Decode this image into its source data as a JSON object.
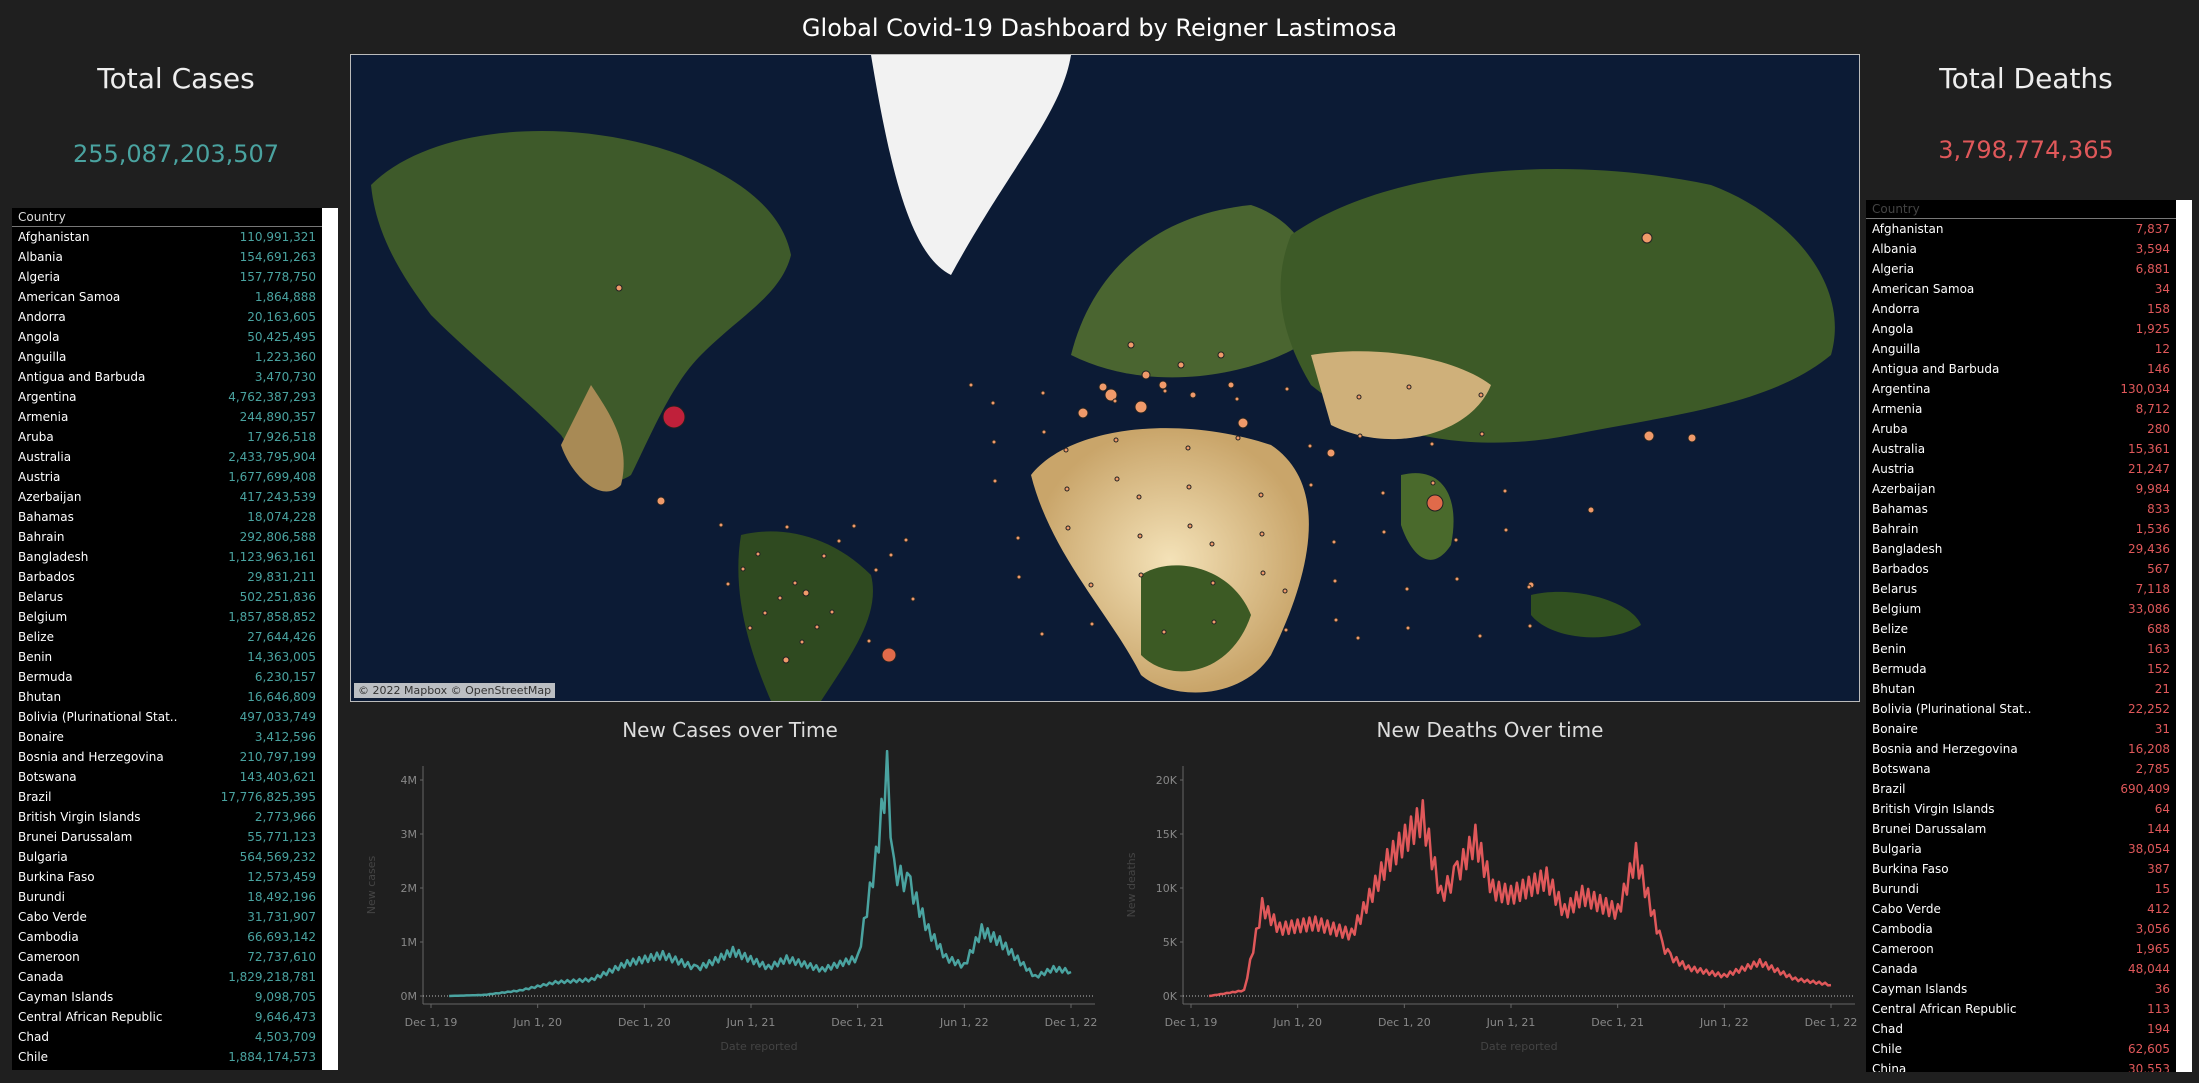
{
  "dashboard": {
    "title": "Global Covid-19 Dashboard by Reigner Lastimosa"
  },
  "cases": {
    "title": "Total Cases",
    "value": "255,087,203,507",
    "color": "#4aa3a0",
    "table_header": "Country",
    "rows": [
      [
        "Afghanistan",
        "110,991,321"
      ],
      [
        "Albania",
        "154,691,263"
      ],
      [
        "Algeria",
        "157,778,750"
      ],
      [
        "American Samoa",
        "1,864,888"
      ],
      [
        "Andorra",
        "20,163,605"
      ],
      [
        "Angola",
        "50,425,495"
      ],
      [
        "Anguilla",
        "1,223,360"
      ],
      [
        "Antigua and Barbuda",
        "3,470,730"
      ],
      [
        "Argentina",
        "4,762,387,293"
      ],
      [
        "Armenia",
        "244,890,357"
      ],
      [
        "Aruba",
        "17,926,518"
      ],
      [
        "Australia",
        "2,433,795,904"
      ],
      [
        "Austria",
        "1,677,699,408"
      ],
      [
        "Azerbaijan",
        "417,243,539"
      ],
      [
        "Bahamas",
        "18,074,228"
      ],
      [
        "Bahrain",
        "292,806,588"
      ],
      [
        "Bangladesh",
        "1,123,963,161"
      ],
      [
        "Barbados",
        "29,831,211"
      ],
      [
        "Belarus",
        "502,251,836"
      ],
      [
        "Belgium",
        "1,857,858,852"
      ],
      [
        "Belize",
        "27,644,426"
      ],
      [
        "Benin",
        "14,363,005"
      ],
      [
        "Bermuda",
        "6,230,157"
      ],
      [
        "Bhutan",
        "16,646,809"
      ],
      [
        "Bolivia (Plurinational Stat..",
        "497,033,749"
      ],
      [
        "Bonaire",
        "3,412,596"
      ],
      [
        "Bosnia and Herzegovina",
        "210,797,199"
      ],
      [
        "Botswana",
        "143,403,621"
      ],
      [
        "Brazil",
        "17,776,825,395"
      ],
      [
        "British Virgin Islands",
        "2,773,966"
      ],
      [
        "Brunei Darussalam",
        "55,771,123"
      ],
      [
        "Bulgaria",
        "564,569,232"
      ],
      [
        "Burkina Faso",
        "12,573,459"
      ],
      [
        "Burundi",
        "18,492,196"
      ],
      [
        "Cabo Verde",
        "31,731,907"
      ],
      [
        "Cambodia",
        "66,693,142"
      ],
      [
        "Cameroon",
        "72,737,610"
      ],
      [
        "Canada",
        "1,829,218,781"
      ],
      [
        "Cayman Islands",
        "9,098,705"
      ],
      [
        "Central African Republic",
        "9,646,473"
      ],
      [
        "Chad",
        "4,503,709"
      ],
      [
        "Chile",
        "1,884,174,573"
      ]
    ]
  },
  "deaths": {
    "title": "Total Deaths",
    "value": "3,798,774,365",
    "color": "#e0585a",
    "table_header": "Country",
    "rows": [
      [
        "Afghanistan",
        "7,837"
      ],
      [
        "Albania",
        "3,594"
      ],
      [
        "Algeria",
        "6,881"
      ],
      [
        "American Samoa",
        "34"
      ],
      [
        "Andorra",
        "158"
      ],
      [
        "Angola",
        "1,925"
      ],
      [
        "Anguilla",
        "12"
      ],
      [
        "Antigua and Barbuda",
        "146"
      ],
      [
        "Argentina",
        "130,034"
      ],
      [
        "Armenia",
        "8,712"
      ],
      [
        "Aruba",
        "280"
      ],
      [
        "Australia",
        "15,361"
      ],
      [
        "Austria",
        "21,247"
      ],
      [
        "Azerbaijan",
        "9,984"
      ],
      [
        "Bahamas",
        "833"
      ],
      [
        "Bahrain",
        "1,536"
      ],
      [
        "Bangladesh",
        "29,436"
      ],
      [
        "Barbados",
        "567"
      ],
      [
        "Belarus",
        "7,118"
      ],
      [
        "Belgium",
        "33,086"
      ],
      [
        "Belize",
        "688"
      ],
      [
        "Benin",
        "163"
      ],
      [
        "Bermuda",
        "152"
      ],
      [
        "Bhutan",
        "21"
      ],
      [
        "Bolivia (Plurinational Stat..",
        "22,252"
      ],
      [
        "Bonaire",
        "31"
      ],
      [
        "Bosnia and Herzegovina",
        "16,208"
      ],
      [
        "Botswana",
        "2,785"
      ],
      [
        "Brazil",
        "690,409"
      ],
      [
        "British Virgin Islands",
        "64"
      ],
      [
        "Brunei Darussalam",
        "144"
      ],
      [
        "Bulgaria",
        "38,054"
      ],
      [
        "Burkina Faso",
        "387"
      ],
      [
        "Burundi",
        "15"
      ],
      [
        "Cabo Verde",
        "412"
      ],
      [
        "Cambodia",
        "3,056"
      ],
      [
        "Cameroon",
        "1,965"
      ],
      [
        "Canada",
        "48,044"
      ],
      [
        "Cayman Islands",
        "36"
      ],
      [
        "Central African Republic",
        "113"
      ],
      [
        "Chad",
        "194"
      ],
      [
        "Chile",
        "62,605"
      ],
      [
        "China",
        "30,553"
      ]
    ]
  },
  "map": {
    "attribution": "© 2022 Mapbox © OpenStreetMap"
  },
  "chart_data": [
    {
      "type": "line",
      "title": "New Cases over Time",
      "xlabel": "Date reported",
      "ylabel": "New cases",
      "color": "#4aa3a0",
      "x_ticks": [
        "Dec 1, 19",
        "Jun 1, 20",
        "Dec 1, 20",
        "Jun 1, 21",
        "Dec 1, 21",
        "Jun 1, 22",
        "Dec 1, 22"
      ],
      "y_ticks": [
        "0M",
        "1M",
        "2M",
        "3M",
        "4M"
      ],
      "ylim": [
        0,
        4200000
      ],
      "x": [
        "2020-01",
        "2020-03",
        "2020-05",
        "2020-07",
        "2020-09",
        "2020-11",
        "2021-01",
        "2021-03",
        "2021-04",
        "2021-05",
        "2021-07",
        "2021-08",
        "2021-10",
        "2021-12",
        "2022-01",
        "2022-01-20",
        "2022-02",
        "2022-03",
        "2022-04",
        "2022-05",
        "2022-06",
        "2022-07",
        "2022-08",
        "2022-10",
        "2022-11",
        "2022-12"
      ],
      "values": [
        0,
        20000,
        100000,
        250000,
        300000,
        600000,
        750000,
        500000,
        650000,
        820000,
        520000,
        680000,
        480000,
        700000,
        2500000,
        4100000,
        2300000,
        2000000,
        1200000,
        700000,
        550000,
        1200000,
        1000000,
        350000,
        500000,
        450000
      ]
    },
    {
      "type": "line",
      "title": "New Deaths Over time",
      "xlabel": "Date reported",
      "ylabel": "New deaths",
      "color": "#e0585a",
      "x_ticks": [
        "Dec 1, 19",
        "Jun 1, 20",
        "Dec 1, 20",
        "Jun 1, 21",
        "Dec 1, 21",
        "Jun 1, 22",
        "Dec 1, 22"
      ],
      "y_ticks": [
        "0K",
        "5K",
        "10K",
        "15K",
        "20K"
      ],
      "ylim": [
        0,
        20500
      ],
      "x": [
        "2020-01",
        "2020-03",
        "2020-04",
        "2020-05",
        "2020-07",
        "2020-09",
        "2020-11",
        "2021-01",
        "2021-02",
        "2021-03",
        "2021-04",
        "2021-05",
        "2021-06",
        "2021-08",
        "2021-09",
        "2021-10",
        "2021-12",
        "2022-01",
        "2022-02",
        "2022-02-15",
        "2022-03",
        "2022-04",
        "2022-06",
        "2022-08",
        "2022-10",
        "2022-12"
      ],
      "values": [
        0,
        500,
        8000,
        6000,
        6500,
        5500,
        12000,
        16000,
        9000,
        11000,
        14000,
        9500,
        9000,
        10500,
        7500,
        9000,
        7500,
        12500,
        7000,
        4500,
        3500,
        2500,
        1800,
        3000,
        1500,
        1000
      ]
    }
  ]
}
